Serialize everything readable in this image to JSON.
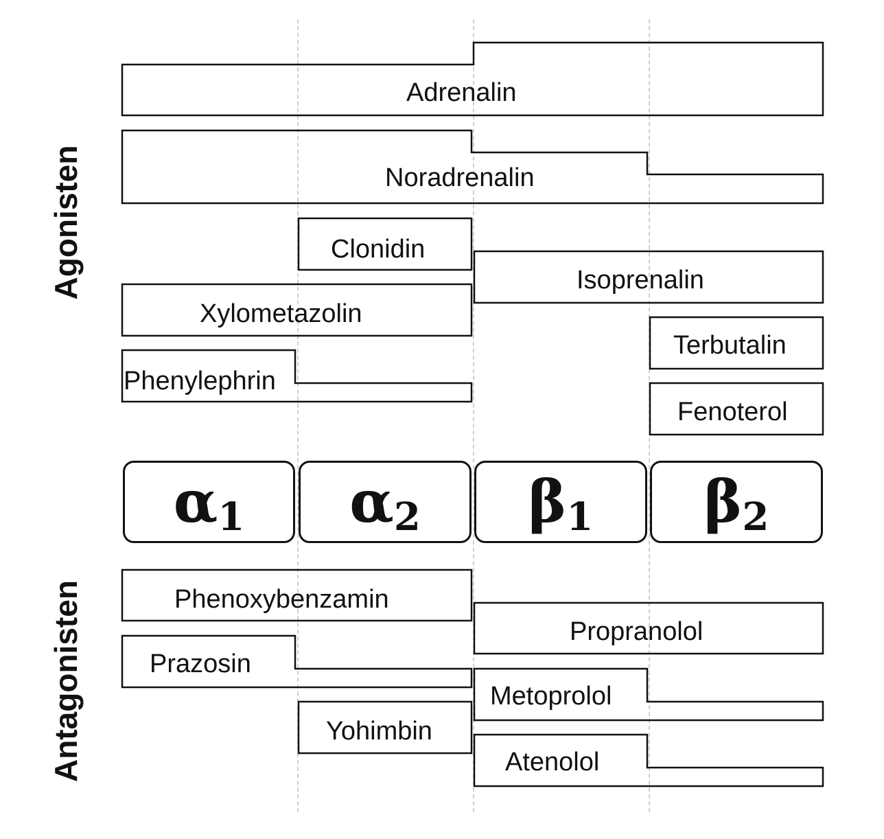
{
  "labels": {
    "agonists": "Agonisten",
    "antagonists": "Antagonisten"
  },
  "receptors": [
    {
      "greek": "α",
      "sub": "1"
    },
    {
      "greek": "α",
      "sub": "2"
    },
    {
      "greek": "β",
      "sub": "1"
    },
    {
      "greek": "β",
      "sub": "2"
    }
  ],
  "drugs": {
    "adrenalin": "Adrenalin",
    "noradrenalin": "Noradrenalin",
    "clonidin": "Clonidin",
    "isoprenalin": "Isoprenalin",
    "xylometazolin": "Xylometazolin",
    "terbutalin": "Terbutalin",
    "phenylephrin": "Phenylephrin",
    "fenoterol": "Fenoterol",
    "phenoxybenzamin": "Phenoxybenzamin",
    "propranolol": "Propranolol",
    "prazosin": "Prazosin",
    "metoprolol": "Metoprolol",
    "yohimbin": "Yohimbin",
    "atenolol": "Atenolol"
  },
  "colors": {
    "stroke": "#111111",
    "divider": "#c9cdf0"
  }
}
